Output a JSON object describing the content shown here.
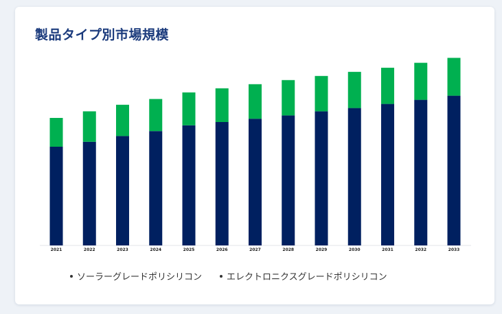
{
  "page": {
    "title": "製品タイプ別市場規模"
  },
  "colors": {
    "series_1": "#002060",
    "series_2": "#00b050"
  },
  "chart_data": {
    "type": "bar",
    "stacked": true,
    "categories": [
      "2021",
      "2022",
      "2023",
      "2024",
      "2025",
      "2026",
      "2027",
      "2028",
      "2029",
      "2030",
      "2031",
      "2032",
      "2033"
    ],
    "series": [
      {
        "name": "ソーラーグレードポリシリコン",
        "values": [
          120,
          126,
          133,
          139,
          146,
          150,
          154,
          158,
          163,
          167,
          172,
          177,
          182
        ],
        "color": "#002060"
      },
      {
        "name": "エレクトロニクスグレードポリシリコン",
        "values": [
          35,
          37,
          38,
          39,
          40,
          41,
          42,
          43,
          43,
          44,
          44,
          45,
          46
        ],
        "color": "#00b050"
      }
    ],
    "ylim": [
      0,
      240
    ],
    "grid": false,
    "legend": "bottom"
  }
}
